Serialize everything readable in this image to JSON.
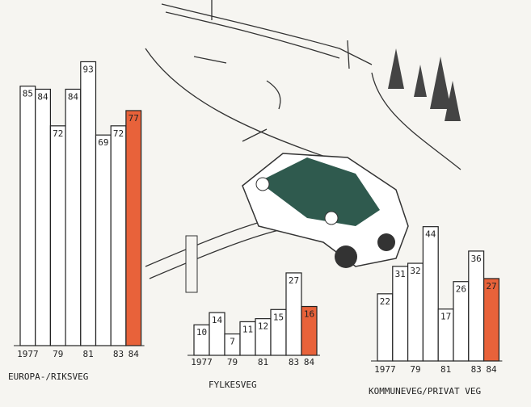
{
  "chart_data": [
    {
      "type": "bar",
      "title": "EUROPA-/RIKSVEG",
      "categories": [
        "1977",
        null,
        "79",
        null,
        "81",
        null,
        "83",
        "84"
      ],
      "values": [
        85,
        84,
        72,
        84,
        93,
        69,
        72,
        77
      ],
      "colors": [
        "#ffffff",
        "#ffffff",
        "#ffffff",
        "#ffffff",
        "#ffffff",
        "#ffffff",
        "#ffffff",
        "#e8623a"
      ]
    },
    {
      "type": "bar",
      "title": "FYLKESVEG",
      "categories": [
        "1977",
        null,
        "79",
        null,
        "81",
        null,
        "83",
        "84"
      ],
      "values": [
        10,
        14,
        7,
        11,
        12,
        15,
        27,
        16
      ],
      "colors": [
        "#ffffff",
        "#ffffff",
        "#ffffff",
        "#ffffff",
        "#ffffff",
        "#ffffff",
        "#ffffff",
        "#e8623a"
      ]
    },
    {
      "type": "bar",
      "title": "KOMMUNEVEG/PRIVAT VEG",
      "categories": [
        "1977",
        null,
        "79",
        null,
        "81",
        null,
        "83",
        "84"
      ],
      "values": [
        22,
        31,
        32,
        44,
        17,
        26,
        36,
        27
      ],
      "colors": [
        "#ffffff",
        "#ffffff",
        "#ffffff",
        "#ffffff",
        "#ffffff",
        "#ffffff",
        "#ffffff",
        "#e8623a"
      ]
    }
  ]
}
